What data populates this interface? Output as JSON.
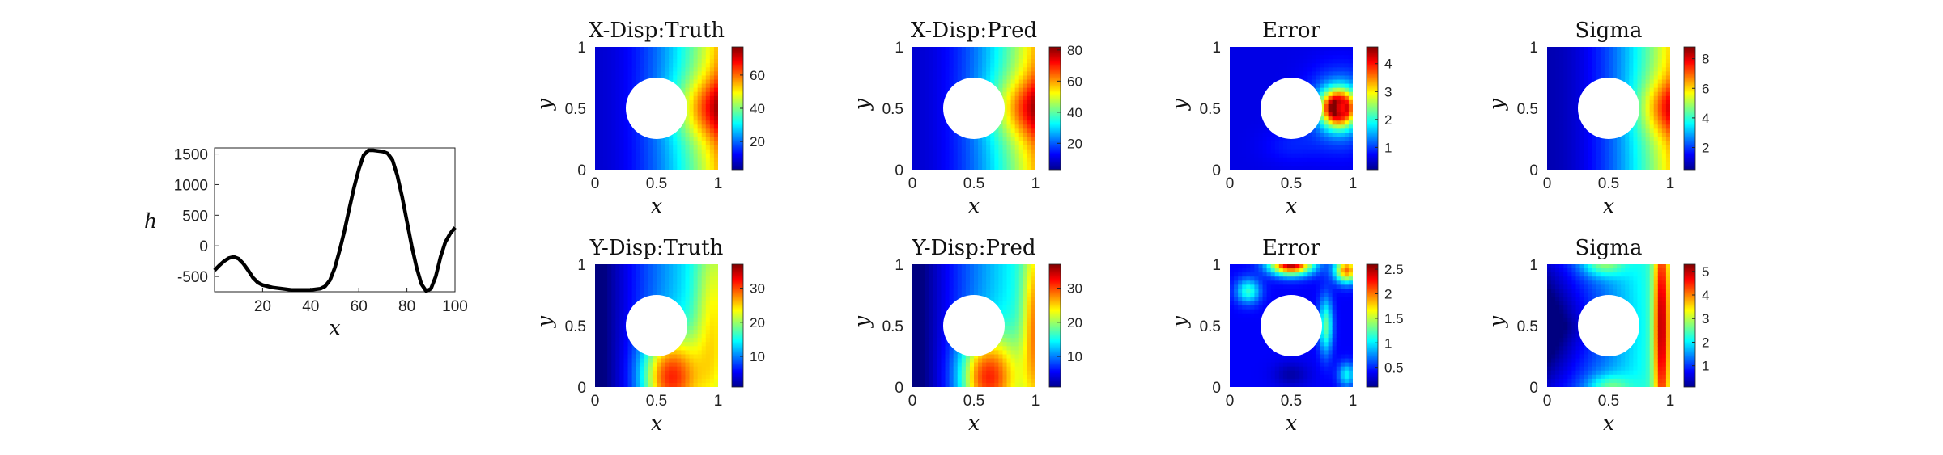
{
  "colors": {
    "curve": "#000000",
    "hole": "#ffffff",
    "axis": "#222222",
    "colormap": "jet"
  },
  "chart_data": [
    {
      "type": "line",
      "title": "",
      "xlabel": "x",
      "ylabel": "h",
      "xlim": [
        0,
        100
      ],
      "ylim": [
        -750,
        1600
      ],
      "xticks": [
        "20",
        "40",
        "60",
        "80",
        "100"
      ],
      "yticks": [
        "-500",
        "0",
        "500",
        "1000",
        "1500"
      ],
      "grid": false,
      "series": [
        {
          "x": [
            0,
            2,
            4,
            6,
            8,
            10,
            12,
            14,
            16,
            18,
            20,
            24,
            28,
            32,
            36,
            40,
            44,
            46,
            48,
            50,
            52,
            54,
            56,
            58,
            60,
            62,
            64,
            66,
            68,
            70,
            72,
            74,
            76,
            78,
            80,
            82,
            84,
            86,
            88,
            90,
            92,
            94,
            96,
            98,
            100
          ],
          "values": [
            -400,
            -320,
            -250,
            -200,
            -180,
            -210,
            -290,
            -400,
            -520,
            -600,
            -640,
            -680,
            -700,
            -720,
            -720,
            -720,
            -700,
            -660,
            -560,
            -360,
            -80,
            240,
            600,
            950,
            1250,
            1480,
            1560,
            1560,
            1550,
            1540,
            1510,
            1400,
            1150,
            800,
            400,
            0,
            -350,
            -620,
            -740,
            -700,
            -500,
            -180,
            60,
            200,
            300
          ]
        }
      ]
    },
    {
      "type": "heatmap",
      "title": "X-Disp:Truth",
      "xlabel": "x",
      "ylabel": "y",
      "xticks": [
        "0",
        "0.5",
        "1"
      ],
      "yticks": [
        "0",
        "0.5",
        "1"
      ],
      "colorbar_ticks": [
        "20",
        "40",
        "60"
      ],
      "clim": [
        3,
        77
      ],
      "field_description": "displacement increasing from left to right, maximum at right edge near y=0.5"
    },
    {
      "type": "heatmap",
      "title": "X-Disp:Pred",
      "xlabel": "x",
      "ylabel": "y",
      "xticks": [
        "0",
        "0.5",
        "1"
      ],
      "yticks": [
        "0",
        "0.5",
        "1"
      ],
      "colorbar_ticks": [
        "20",
        "40",
        "60",
        "80"
      ],
      "clim": [
        3,
        82
      ],
      "field_description": "displacement increasing from left to right, maximum at right edge near y=0.5"
    },
    {
      "type": "heatmap",
      "title": "Error",
      "xlabel": "x",
      "ylabel": "y",
      "xticks": [
        "0",
        "0.5",
        "1"
      ],
      "yticks": [
        "0",
        "0.5",
        "1"
      ],
      "colorbar_ticks": [
        "1",
        "2",
        "3",
        "4"
      ],
      "clim": [
        0.2,
        4.6
      ]
    },
    {
      "type": "heatmap",
      "title": "Sigma",
      "xlabel": "x",
      "ylabel": "y",
      "xticks": [
        "0",
        "0.5",
        "1"
      ],
      "yticks": [
        "0",
        "0.5",
        "1"
      ],
      "colorbar_ticks": [
        "2",
        "4",
        "6",
        "8"
      ],
      "clim": [
        0.5,
        8.8
      ]
    },
    {
      "type": "heatmap",
      "title": "Y-Disp:Truth",
      "xlabel": "x",
      "ylabel": "y",
      "xticks": [
        "0",
        "0.5",
        "1"
      ],
      "yticks": [
        "0",
        "0.5",
        "1"
      ],
      "colorbar_ticks": [
        "10",
        "20",
        "30"
      ],
      "clim": [
        1,
        37
      ]
    },
    {
      "type": "heatmap",
      "title": "Y-Disp:Pred",
      "xlabel": "x",
      "ylabel": "y",
      "xticks": [
        "0",
        "0.5",
        "1"
      ],
      "yticks": [
        "0",
        "0.5",
        "1"
      ],
      "colorbar_ticks": [
        "10",
        "20",
        "30"
      ],
      "clim": [
        1,
        37
      ]
    },
    {
      "type": "heatmap",
      "title": "Error",
      "xlabel": "x",
      "ylabel": "y",
      "xticks": [
        "0",
        "0.5",
        "1"
      ],
      "yticks": [
        "0",
        "0.5",
        "1"
      ],
      "colorbar_ticks": [
        "0.5",
        "1",
        "1.5",
        "2",
        "2.5"
      ],
      "clim": [
        0.1,
        2.6
      ]
    },
    {
      "type": "heatmap",
      "title": "Sigma",
      "xlabel": "x",
      "ylabel": "y",
      "xticks": [
        "0",
        "0.5",
        "1"
      ],
      "yticks": [
        "0",
        "0.5",
        "1"
      ],
      "colorbar_ticks": [
        "1",
        "2",
        "3",
        "4",
        "5"
      ],
      "clim": [
        0.1,
        5.3
      ]
    }
  ]
}
